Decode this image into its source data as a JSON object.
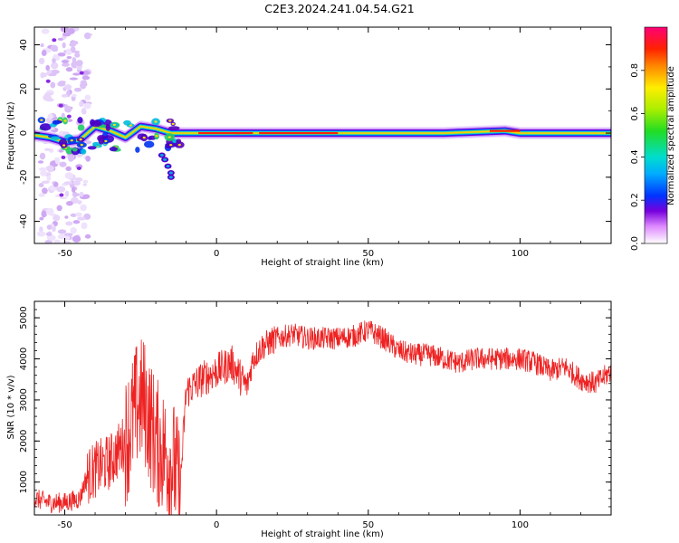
{
  "title": "C2E3.2024.241.04.54.G21",
  "colors": {
    "snr_line": "#ee2222",
    "background": "#ffffff",
    "axis": "#000000"
  },
  "chart_data": [
    {
      "type": "heatmap",
      "xlabel": "Height of straight line (km)",
      "ylabel": "Frequency (Hz)",
      "xlim": [
        -60,
        130
      ],
      "ylim": [
        -50,
        48
      ],
      "x_ticks": [
        "-50",
        "0",
        "50",
        "100"
      ],
      "y_ticks": [
        "-40",
        "-20",
        "0",
        "20",
        "40"
      ],
      "colorbar": {
        "label": "Normalized spectral amplitude",
        "range": [
          0,
          1
        ],
        "ticks": [
          "0.0",
          "0.2",
          "0.4",
          "0.6",
          "0.8"
        ]
      },
      "ridge": [
        {
          "x": -60,
          "y": -1
        },
        {
          "x": -55,
          "y": -2
        },
        {
          "x": -50,
          "y": -4
        },
        {
          "x": -45,
          "y": -3
        },
        {
          "x": -40,
          "y": 3
        },
        {
          "x": -35,
          "y": 1
        },
        {
          "x": -30,
          "y": -2
        },
        {
          "x": -25,
          "y": 3
        },
        {
          "x": -20,
          "y": 2
        },
        {
          "x": -15,
          "y": 0
        },
        {
          "x": -10,
          "y": 0
        },
        {
          "x": 0,
          "y": 0
        },
        {
          "x": 25,
          "y": 0
        },
        {
          "x": 50,
          "y": 0
        },
        {
          "x": 75,
          "y": 0
        },
        {
          "x": 95,
          "y": 1
        },
        {
          "x": 100,
          "y": 0
        },
        {
          "x": 130,
          "y": 0
        }
      ]
    },
    {
      "type": "line",
      "xlabel": "Height of straight line (km)",
      "ylabel": "SNR (10 * v/v)",
      "xlim": [
        -60,
        130
      ],
      "ylim": [
        200,
        5400
      ],
      "x_ticks": [
        "-50",
        "0",
        "50",
        "100"
      ],
      "y_ticks": [
        "1000",
        "2000",
        "3000",
        "4000",
        "5000"
      ],
      "series": [
        {
          "x": [
            -60,
            -55,
            -50,
            -45,
            -43,
            -40,
            -35,
            -30,
            -26,
            -24,
            -22,
            -20,
            -17,
            -14,
            -12,
            -10,
            -5,
            0,
            5,
            10,
            12,
            15,
            20,
            25,
            30,
            35,
            40,
            45,
            50,
            55,
            60,
            65,
            70,
            75,
            80,
            85,
            90,
            95,
            100,
            105,
            110,
            115,
            120,
            125,
            130
          ],
          "y": [
            600,
            500,
            500,
            600,
            1100,
            1300,
            1500,
            2000,
            2900,
            3000,
            2500,
            2000,
            1700,
            1400,
            800,
            3200,
            3500,
            3700,
            3900,
            3300,
            4000,
            4300,
            4500,
            4600,
            4500,
            4500,
            4500,
            4550,
            4700,
            4500,
            4200,
            4100,
            4100,
            4000,
            3900,
            4000,
            4000,
            4000,
            4000,
            3900,
            3700,
            3800,
            3500,
            3400,
            3700
          ]
        }
      ]
    }
  ]
}
